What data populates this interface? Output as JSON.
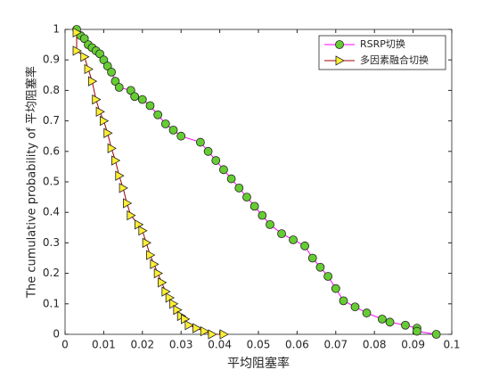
{
  "chart_data": {
    "type": "line",
    "xlabel": "平均阻塞率",
    "ylabel": "The cumulative probability of 平均阻塞率",
    "xlim": [
      0,
      0.1
    ],
    "ylim": [
      0,
      1
    ],
    "xticks": [
      0,
      0.01,
      0.02,
      0.03,
      0.04,
      0.05,
      0.06,
      0.07,
      0.08,
      0.09,
      0.1
    ],
    "yticks": [
      0,
      0.1,
      0.2,
      0.3,
      0.4,
      0.5,
      0.6,
      0.7,
      0.8,
      0.9,
      1
    ],
    "legend": "upper right",
    "series": [
      {
        "name": "RSRP切换",
        "color": "#ff00ff",
        "marker": "circle",
        "marker_color": "#66cc33",
        "x": [
          0.003,
          0.004,
          0.005,
          0.006,
          0.007,
          0.008,
          0.009,
          0.01,
          0.011,
          0.012,
          0.013,
          0.014,
          0.017,
          0.018,
          0.02,
          0.022,
          0.024,
          0.026,
          0.028,
          0.03,
          0.035,
          0.037,
          0.039,
          0.041,
          0.043,
          0.045,
          0.047,
          0.049,
          0.051,
          0.053,
          0.056,
          0.059,
          0.062,
          0.064,
          0.066,
          0.068,
          0.07,
          0.072,
          0.075,
          0.078,
          0.082,
          0.084,
          0.088,
          0.091,
          0.091,
          0.096
        ],
        "values": [
          1.0,
          0.98,
          0.97,
          0.95,
          0.94,
          0.93,
          0.92,
          0.9,
          0.88,
          0.86,
          0.83,
          0.81,
          0.8,
          0.78,
          0.77,
          0.75,
          0.72,
          0.69,
          0.67,
          0.65,
          0.63,
          0.6,
          0.57,
          0.54,
          0.51,
          0.48,
          0.45,
          0.42,
          0.39,
          0.36,
          0.33,
          0.31,
          0.29,
          0.25,
          0.22,
          0.19,
          0.15,
          0.11,
          0.09,
          0.07,
          0.05,
          0.04,
          0.03,
          0.02,
          0.01,
          0.0
        ]
      },
      {
        "name": "多因素融合切换",
        "color": "#a00000",
        "marker": "triangle-right",
        "marker_color": "#ffee33",
        "x": [
          0.003,
          0.003,
          0.005,
          0.006,
          0.007,
          0.008,
          0.009,
          0.01,
          0.011,
          0.012,
          0.013,
          0.014,
          0.015,
          0.016,
          0.017,
          0.019,
          0.02,
          0.021,
          0.022,
          0.023,
          0.024,
          0.025,
          0.026,
          0.027,
          0.028,
          0.029,
          0.03,
          0.031,
          0.032,
          0.034,
          0.036,
          0.038,
          0.041
        ],
        "values": [
          0.99,
          0.93,
          0.91,
          0.87,
          0.83,
          0.77,
          0.73,
          0.7,
          0.66,
          0.61,
          0.57,
          0.52,
          0.48,
          0.43,
          0.39,
          0.36,
          0.34,
          0.3,
          0.26,
          0.23,
          0.2,
          0.17,
          0.14,
          0.12,
          0.1,
          0.08,
          0.06,
          0.05,
          0.03,
          0.02,
          0.01,
          0.0,
          0.0
        ]
      }
    ]
  }
}
